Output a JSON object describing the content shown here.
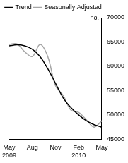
{
  "chart_data": {
    "type": "line",
    "ylabel": "no.",
    "categories": [
      "May 2009",
      null,
      null,
      "Aug",
      null,
      null,
      "Nov",
      null,
      null,
      "Feb 2010",
      null,
      null,
      "May"
    ],
    "series": [
      {
        "name": "Trend",
        "color": "#000000",
        "values": [
          64200,
          64400,
          64200,
          63500,
          62000,
          59500,
          56500,
          53500,
          51500,
          50000,
          48800,
          48000,
          47500
        ]
      },
      {
        "name": "Seasonally Adjusted",
        "color": "#a6a6a6",
        "values": [
          64500,
          64600,
          63000,
          62000,
          64500,
          62000,
          56000,
          54000,
          51000,
          50500,
          49000,
          47500,
          48800
        ]
      }
    ],
    "ylim": [
      45000,
      70000
    ],
    "yticks": [
      45000,
      50000,
      55000,
      60000,
      65000,
      70000
    ],
    "grid": false,
    "legend": "top-left"
  }
}
